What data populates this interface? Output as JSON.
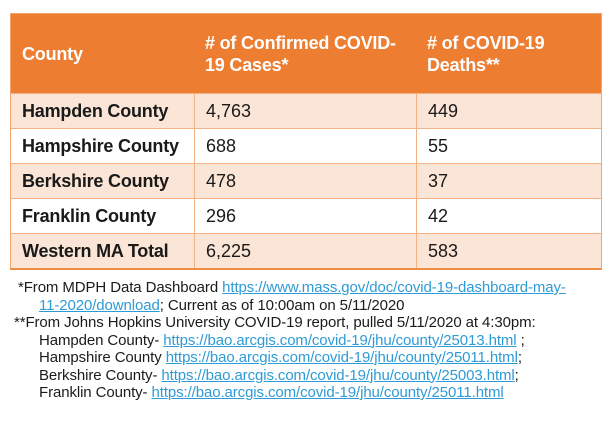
{
  "colors": {
    "header_bg": "#ED7D31",
    "header_text": "#FFFFFF",
    "banded_row_bg": "#FBE5D6",
    "plain_row_bg": "#FFFFFF",
    "cell_border": "#F4B183",
    "body_text": "#1A1A1A",
    "link": "#2E9BD6"
  },
  "table": {
    "columns": [
      {
        "label": "County"
      },
      {
        "label": "# of Confirmed COVID-19 Cases*"
      },
      {
        "label": "# of COVID-19 Deaths**"
      }
    ],
    "rows": [
      {
        "county": "Hampden County",
        "cases": "4,763",
        "deaths": "449"
      },
      {
        "county": "Hampshire County",
        "cases": "688",
        "deaths": "55"
      },
      {
        "county": "Berkshire County",
        "cases": "478",
        "deaths": "37"
      },
      {
        "county": "Franklin County",
        "cases": "296",
        "deaths": "42"
      },
      {
        "county": "Western MA Total",
        "cases": "6,225",
        "deaths": "583"
      }
    ]
  },
  "footnotes": {
    "line1_prefix": "*From MDPH Data Dashboard ",
    "line1_link": "https://www.mass.gov/doc/covid-19-dashboard-may-",
    "line2_link": "11-2020/download",
    "line2_suffix": "; Current as of 10:00am on 5/11/2020",
    "line3": "**From Johns Hopkins University COVID-19 report, pulled 5/11/2020 at 4:30pm:",
    "county_links": [
      {
        "prefix": "Hampden County- ",
        "url": "https://bao.arcgis.com/covid-19/jhu/county/25013.html",
        "suffix": " ;"
      },
      {
        "prefix": "Hampshire County ",
        "url": "https://bao.arcgis.com/covid-19/jhu/county/25011.html",
        "suffix": ";"
      },
      {
        "prefix": "Berkshire County- ",
        "url": "https://bao.arcgis.com/covid-19/jhu/county/25003.html",
        "suffix": ";"
      },
      {
        "prefix": "Franklin County- ",
        "url": "https://bao.arcgis.com/covid-19/jhu/county/25011.html",
        "suffix": ""
      }
    ]
  }
}
